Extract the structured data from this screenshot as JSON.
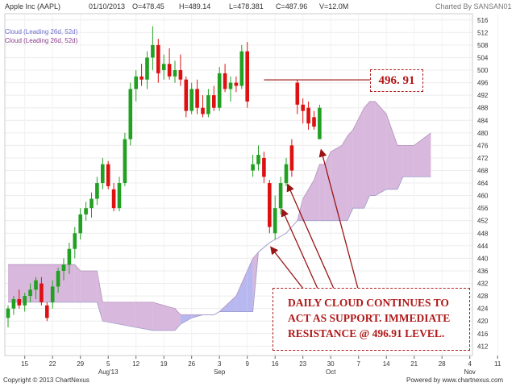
{
  "header": {
    "symbol": "Apple Inc (AAPL)",
    "date": "01/10/2013",
    "open": "O=478.45",
    "high": "H=489.14",
    "low": "L=478.381",
    "close": "C=487.96",
    "volume": "V=12.0M",
    "charted_by": "Charted By SANSAN01"
  },
  "legend": [
    {
      "label": "Cloud (Leading 26d, 52d)",
      "color": "#7070d0"
    },
    {
      "label": "Cloud (Leading 26d, 52d)",
      "color": "#8a3c8a"
    }
  ],
  "footer": {
    "copyright": "Copyright © 2013 ChartNexus",
    "powered": "Powered by www.chartnexus.com"
  },
  "annotations": {
    "resistance_value": "496. 91",
    "callout_lines": [
      "DAILY CLOUD CONTINUES TO",
      "ACT AS SUPPORT. IMMEDIATE",
      "RESISTANCE @ 496.91 LEVEL."
    ]
  },
  "colors": {
    "up": "#22a022",
    "down": "#dd1111",
    "cloud_bull": "#d8b8dc",
    "cloud_bear": "#b8b8f0",
    "annotation": "#9a1414"
  },
  "chart_data": {
    "type": "candlestick",
    "y_ticks": [
      412,
      416,
      420,
      424,
      428,
      432,
      436,
      440,
      444,
      448,
      452,
      456,
      460,
      464,
      468,
      472,
      476,
      480,
      484,
      488,
      492,
      496,
      500,
      504,
      508,
      512,
      516
    ],
    "ylim": [
      409,
      518
    ],
    "x_ticks": [
      {
        "label": "15",
        "month": ""
      },
      {
        "label": "22",
        "month": ""
      },
      {
        "label": "29",
        "month": ""
      },
      {
        "label": "5",
        "month": "Aug'13"
      },
      {
        "label": "12",
        "month": ""
      },
      {
        "label": "19",
        "month": ""
      },
      {
        "label": "26",
        "month": ""
      },
      {
        "label": "3",
        "month": "Sep"
      },
      {
        "label": "9",
        "month": ""
      },
      {
        "label": "16",
        "month": ""
      },
      {
        "label": "23",
        "month": ""
      },
      {
        "label": "30",
        "month": "Oct"
      },
      {
        "label": "7",
        "month": ""
      },
      {
        "label": "14",
        "month": ""
      },
      {
        "label": "21",
        "month": ""
      },
      {
        "label": "28",
        "month": ""
      },
      {
        "label": "4",
        "month": "Nov"
      },
      {
        "label": "11",
        "month": ""
      }
    ],
    "candles": [
      {
        "o": 421,
        "h": 425,
        "l": 418,
        "c": 424
      },
      {
        "o": 424,
        "h": 428,
        "l": 422,
        "c": 427
      },
      {
        "o": 427,
        "h": 430,
        "l": 424,
        "c": 425
      },
      {
        "o": 425,
        "h": 429,
        "l": 423,
        "c": 428
      },
      {
        "o": 428,
        "h": 432,
        "l": 426,
        "c": 430
      },
      {
        "o": 430,
        "h": 434,
        "l": 427,
        "c": 433
      },
      {
        "o": 432,
        "h": 434,
        "l": 425,
        "c": 426
      },
      {
        "o": 425,
        "h": 426,
        "l": 420,
        "c": 421
      },
      {
        "o": 426,
        "h": 433,
        "l": 424,
        "c": 431
      },
      {
        "o": 431,
        "h": 437,
        "l": 429,
        "c": 436
      },
      {
        "o": 436,
        "h": 440,
        "l": 433,
        "c": 438
      },
      {
        "o": 438,
        "h": 445,
        "l": 435,
        "c": 443
      },
      {
        "o": 443,
        "h": 450,
        "l": 440,
        "c": 448
      },
      {
        "o": 448,
        "h": 456,
        "l": 446,
        "c": 454
      },
      {
        "o": 454,
        "h": 458,
        "l": 452,
        "c": 456
      },
      {
        "o": 456,
        "h": 461,
        "l": 453,
        "c": 459
      },
      {
        "o": 459,
        "h": 466,
        "l": 457,
        "c": 464
      },
      {
        "o": 464,
        "h": 472,
        "l": 462,
        "c": 470
      },
      {
        "o": 470,
        "h": 471,
        "l": 462,
        "c": 463
      },
      {
        "o": 462,
        "h": 464,
        "l": 455,
        "c": 456
      },
      {
        "o": 456,
        "h": 466,
        "l": 455,
        "c": 464
      },
      {
        "o": 464,
        "h": 480,
        "l": 463,
        "c": 478
      },
      {
        "o": 478,
        "h": 496,
        "l": 476,
        "c": 494
      },
      {
        "o": 494,
        "h": 500,
        "l": 490,
        "c": 498
      },
      {
        "o": 498,
        "h": 502,
        "l": 495,
        "c": 497
      },
      {
        "o": 497,
        "h": 506,
        "l": 494,
        "c": 504
      },
      {
        "o": 504,
        "h": 514,
        "l": 500,
        "c": 508
      },
      {
        "o": 508,
        "h": 510,
        "l": 496,
        "c": 499
      },
      {
        "o": 500,
        "h": 505,
        "l": 497,
        "c": 502
      },
      {
        "o": 502,
        "h": 507,
        "l": 497,
        "c": 498
      },
      {
        "o": 498,
        "h": 503,
        "l": 496,
        "c": 500
      },
      {
        "o": 500,
        "h": 505,
        "l": 495,
        "c": 497
      },
      {
        "o": 497,
        "h": 498,
        "l": 485,
        "c": 487
      },
      {
        "o": 487,
        "h": 496,
        "l": 486,
        "c": 494
      },
      {
        "o": 494,
        "h": 497,
        "l": 486,
        "c": 488
      },
      {
        "o": 488,
        "h": 492,
        "l": 485,
        "c": 486
      },
      {
        "o": 486,
        "h": 494,
        "l": 485,
        "c": 492
      },
      {
        "o": 492,
        "h": 495,
        "l": 487,
        "c": 488
      },
      {
        "o": 488,
        "h": 501,
        "l": 487,
        "c": 499
      },
      {
        "o": 499,
        "h": 502,
        "l": 493,
        "c": 494
      },
      {
        "o": 494,
        "h": 498,
        "l": 490,
        "c": 496
      },
      {
        "o": 496,
        "h": 498,
        "l": 493,
        "c": 495
      },
      {
        "o": 495,
        "h": 508,
        "l": 494,
        "c": 506
      },
      {
        "o": 506,
        "h": 509,
        "l": 488,
        "c": 490
      },
      {
        "o": 468,
        "h": 473,
        "l": 466,
        "c": 470
      },
      {
        "o": 470,
        "h": 476,
        "l": 468,
        "c": 473
      },
      {
        "o": 472,
        "h": 474,
        "l": 464,
        "c": 466
      },
      {
        "o": 464,
        "h": 465,
        "l": 448,
        "c": 450
      },
      {
        "o": 448,
        "h": 460,
        "l": 446,
        "c": 456
      },
      {
        "o": 456,
        "h": 466,
        "l": 454,
        "c": 464
      },
      {
        "o": 464,
        "h": 472,
        "l": 463,
        "c": 470
      },
      {
        "o": 476,
        "h": 478,
        "l": 466,
        "c": 468
      },
      {
        "o": 496,
        "h": 497,
        "l": 486,
        "c": 489
      },
      {
        "o": 489,
        "h": 491,
        "l": 483,
        "c": 487
      },
      {
        "o": 488,
        "h": 490,
        "l": 481,
        "c": 483
      },
      {
        "o": 485,
        "h": 487,
        "l": 481,
        "c": 482
      },
      {
        "o": 478,
        "h": 489,
        "l": 478,
        "c": 488
      }
    ],
    "cloud": {
      "x": [
        0,
        12,
        13,
        16,
        17,
        23,
        26,
        30,
        31,
        33,
        35,
        37,
        38,
        41,
        43,
        44,
        45,
        47,
        49,
        50,
        52,
        53,
        55,
        56,
        57,
        58,
        60,
        61,
        62,
        64,
        65,
        66,
        68,
        70,
        71,
        73,
        76
      ],
      "upper": [
        438,
        438,
        436,
        436,
        426,
        426,
        426,
        424,
        422,
        422,
        422,
        422,
        423,
        428,
        436,
        440,
        442,
        445,
        447,
        448,
        452,
        459,
        465,
        470,
        470,
        474,
        476,
        479,
        481,
        488,
        490,
        490,
        486,
        476,
        476,
        476,
        480
      ],
      "lower": [
        426,
        426,
        426,
        426,
        420,
        418,
        417,
        417,
        419,
        421,
        422,
        422,
        423,
        423,
        423,
        423,
        442,
        445,
        447,
        448,
        452,
        452,
        452,
        452,
        452,
        452,
        452,
        452,
        456,
        456,
        460,
        460,
        462,
        462,
        466,
        466,
        466
      ],
      "series": [
        {
          "name": "Cloud (Leading 26d, 52d)",
          "color": "#b8b8f0"
        },
        {
          "name": "Cloud (Leading 26d, 52d)",
          "color": "#d8b8dc"
        }
      ]
    },
    "resistance": 496.91
  }
}
